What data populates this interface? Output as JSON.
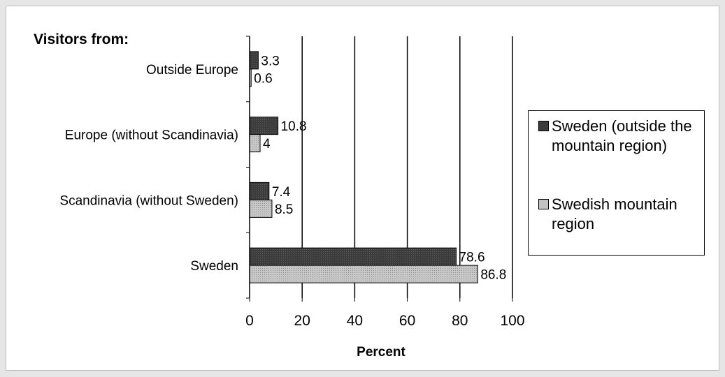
{
  "chart_data": {
    "type": "bar",
    "orientation": "horizontal",
    "title": "Visitors from:",
    "xlabel": "Percent",
    "ylabel": "",
    "xlim": [
      0,
      100
    ],
    "x_ticks": [
      0,
      20,
      40,
      60,
      80,
      100
    ],
    "grid": true,
    "legend_position": "right",
    "categories": [
      "Outside Europe",
      "Europe (without Scandinavia)",
      "Scandinavia (without Sweden)",
      "Sweden"
    ],
    "series": [
      {
        "name": "Sweden (outside the mountain region)",
        "values": [
          3.3,
          10.8,
          7.4,
          78.6
        ],
        "color": "#3c3c3c"
      },
      {
        "name": "Swedish mountain region",
        "values": [
          0.6,
          4,
          8.5,
          86.8
        ],
        "color": "#c2c2c2"
      }
    ],
    "value_labels": [
      [
        "3.3",
        "10.8",
        "7.4",
        "78.6"
      ],
      [
        "0.6",
        "4",
        "8.5",
        "86.8"
      ]
    ]
  }
}
